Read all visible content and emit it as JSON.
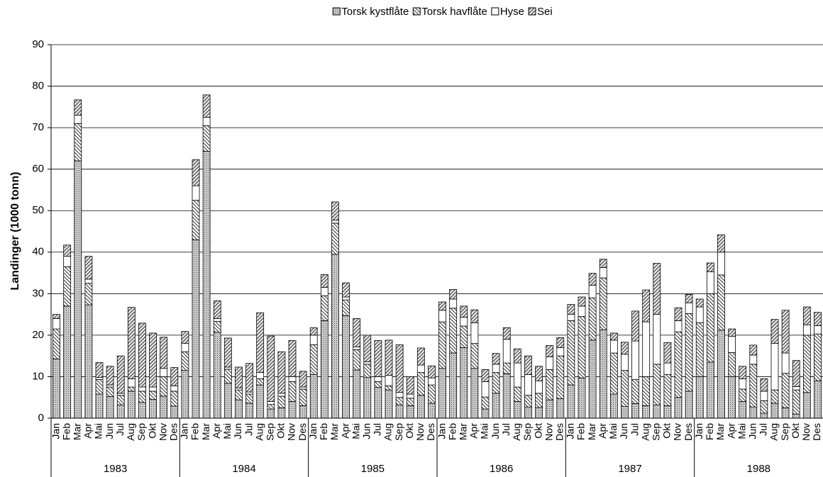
{
  "chart_data": {
    "type": "stacked_bar",
    "y_label": "Landinger (1000 tonn)",
    "categories": [
      "Jan",
      "Feb",
      "Mar",
      "Apr",
      "Mai",
      "Jun",
      "Jul",
      "Aug",
      "Sep",
      "Okt",
      "Nov",
      "Des",
      "Jan",
      "Feb",
      "Mar",
      "Apr",
      "Mai",
      "Jun",
      "Jul",
      "Aug",
      "Sep",
      "Okt",
      "Nov",
      "Des",
      "Jan",
      "Feb",
      "Mar",
      "Apr",
      "Mai",
      "Jun",
      "Jul",
      "Aug",
      "Sep",
      "Okt",
      "Nov",
      "Des",
      "Jan",
      "Feb",
      "Mar",
      "Apr",
      "Mai",
      "Jun",
      "Jul",
      "Aug",
      "Sep",
      "Okt",
      "Nov",
      "Des",
      "Jan",
      "Feb",
      "Mar",
      "Apr",
      "Mai",
      "Jun",
      "Jul",
      "Aug",
      "Sep",
      "Okt",
      "Nov",
      "Des",
      "Jan",
      "Feb",
      "Mar",
      "Apr",
      "Mai",
      "Jun",
      "Jul",
      "Aug",
      "Sep",
      "Okt",
      "Nov",
      "Des"
    ],
    "groups": [
      "1983",
      "1984",
      "1985",
      "1986",
      "1987",
      "1988"
    ],
    "series": [
      {
        "name": "Torsk kystflåte",
        "color": "#b0b0b0",
        "pattern": "dots",
        "values": [
          14.3,
          27,
          62,
          27.3,
          5.8,
          5.2,
          3.2,
          6.5,
          3.8,
          4.5,
          5.3,
          2.9,
          11.5,
          43,
          64.3,
          20.7,
          8.4,
          4.4,
          3.6,
          8,
          2.2,
          2.5,
          4,
          3,
          10.5,
          23.5,
          39.5,
          24.7,
          11.6,
          9.8,
          7.4,
          6.8,
          3.2,
          3,
          5.5,
          3.6,
          12,
          15.7,
          17,
          12,
          2.2,
          6,
          10.7,
          4,
          2.7,
          2.6,
          4.4,
          4.7,
          8,
          9.7,
          18.8,
          21.3,
          5.8,
          2.8,
          3.5,
          3,
          3.2,
          3,
          5,
          6.5,
          10,
          13.5,
          21.2,
          10,
          4,
          2.7,
          1.2,
          3.6,
          2.5,
          1,
          6.2,
          9
        ]
      },
      {
        "name": "Torsk havflåte",
        "color": "#ffffff",
        "pattern": "backslash",
        "values": [
          7.2,
          9.5,
          9,
          5.2,
          3.5,
          2.3,
          2.3,
          1,
          2.7,
          2,
          4.7,
          3.6,
          4.5,
          9.5,
          6.2,
          2.6,
          3.4,
          2.4,
          2.2,
          1.5,
          1.1,
          2.8,
          4.8,
          4,
          7.2,
          6,
          7.5,
          3.8,
          4.9,
          3.2,
          1.4,
          1,
          1.8,
          1.8,
          5.5,
          4.4,
          11.2,
          10.8,
          5.2,
          6,
          2.9,
          5,
          2.6,
          3.5,
          2.8,
          3.4,
          7.3,
          10.3,
          15.5,
          14.8,
          10.2,
          12.5,
          9.9,
          8.7,
          5.8,
          7,
          9.8,
          7.5,
          15.8,
          18.7,
          13,
          16.5,
          13.3,
          5.8,
          3,
          10.3,
          3,
          3.2,
          8.3,
          5.8,
          13.8,
          11.3
        ]
      },
      {
        "name": "Hyse",
        "color": "#ffffff",
        "pattern": "none",
        "values": [
          2.5,
          2.5,
          2,
          1,
          0.5,
          0.5,
          0.5,
          2,
          1,
          1,
          2,
          1.3,
          2,
          3.5,
          2,
          0.7,
          0.5,
          0.5,
          0.5,
          1.5,
          0.7,
          0.7,
          1.2,
          0.5,
          2.3,
          2,
          0.7,
          0.7,
          0.7,
          0.6,
          1.2,
          2.5,
          1.2,
          1,
          1.8,
          1.7,
          2.8,
          2.2,
          2.1,
          5,
          3.7,
          2,
          5.7,
          5.8,
          5,
          3,
          3.1,
          2,
          1.5,
          2.5,
          3,
          2.5,
          3.1,
          3.9,
          9.3,
          13.2,
          12,
          2.8,
          2.7,
          2.6,
          3.8,
          5.3,
          5.5,
          3.9,
          2.5,
          2.2,
          2.3,
          11.2,
          4.9,
          0.8,
          2.5,
          2
        ]
      },
      {
        "name": "Sei",
        "color": "#d8d8d8",
        "pattern": "slash",
        "values": [
          1,
          2.7,
          3.7,
          5.5,
          3.6,
          4.5,
          9,
          17.2,
          15.4,
          13,
          7.5,
          4.4,
          2.9,
          6.3,
          5.4,
          4.3,
          7,
          5,
          6.9,
          14.4,
          15.8,
          10,
          8.7,
          3.8,
          1.8,
          3.1,
          4.4,
          3.4,
          6.8,
          6.4,
          8.7,
          8.5,
          11.5,
          4.2,
          4.1,
          2.9,
          2,
          2.3,
          2.7,
          3.1,
          2.9,
          2.6,
          2.8,
          3.4,
          4.5,
          3.5,
          2.7,
          2.4,
          2.4,
          2.2,
          2.9,
          2,
          1.7,
          2.9,
          7.2,
          7.7,
          12.3,
          4.9,
          3.1,
          2,
          1.9,
          2.1,
          4.2,
          1.8,
          3,
          2.4,
          3,
          5.8,
          10.3,
          6.3,
          4.3,
          3.2
        ]
      }
    ],
    "ylim": [
      0,
      90
    ],
    "yticks": [
      0,
      10,
      20,
      30,
      40,
      50,
      60,
      70,
      80,
      90
    ],
    "grid": true,
    "legend": "top"
  }
}
